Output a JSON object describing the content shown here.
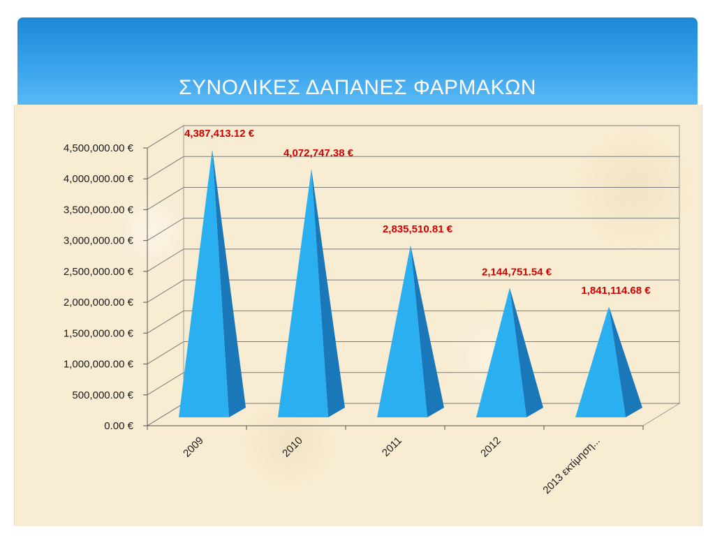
{
  "slide": {
    "title": "ΣΥΝΟΛΙΚΕΣ ΔΑΠΑΝΕΣ ΦΑΡΜΑΚΩΝ",
    "accent_color": "#2196e8",
    "background_color": "#f8ecd2"
  },
  "chart_data": {
    "type": "bar",
    "shape": "pyramid-3d",
    "title": "",
    "xlabel": "",
    "ylabel": "",
    "categories": [
      "2009",
      "2010",
      "2011",
      "2012",
      "2013 εκτίμηση..."
    ],
    "values": [
      4387413.12,
      4072747.38,
      2835510.81,
      2144751.54,
      1841114.68
    ],
    "data_labels": [
      "4,387,413.12 €",
      "4,072,747.38 €",
      "2,835,510.81 €",
      "2,144,751.54 €",
      "1,841,114.68 €"
    ],
    "ylim": [
      0,
      4500000
    ],
    "yticks": [
      0,
      500000,
      1000000,
      1500000,
      2000000,
      2500000,
      3000000,
      3500000,
      4000000,
      4500000
    ],
    "ytick_labels": [
      "0.00 €",
      "500,000.00 €",
      "1,000,000.00 €",
      "1,500,000.00 €",
      "2,000,000.00 €",
      "2,500,000.00 €",
      "3,000,000.00 €",
      "3,500,000.00 €",
      "4,000,000.00 €",
      "4,500,000.00 €"
    ],
    "grid": true,
    "legend": "none",
    "bar_color": "#2ab0f0",
    "bar_shade_color": "#1a78b8",
    "label_color": "#d40000"
  }
}
